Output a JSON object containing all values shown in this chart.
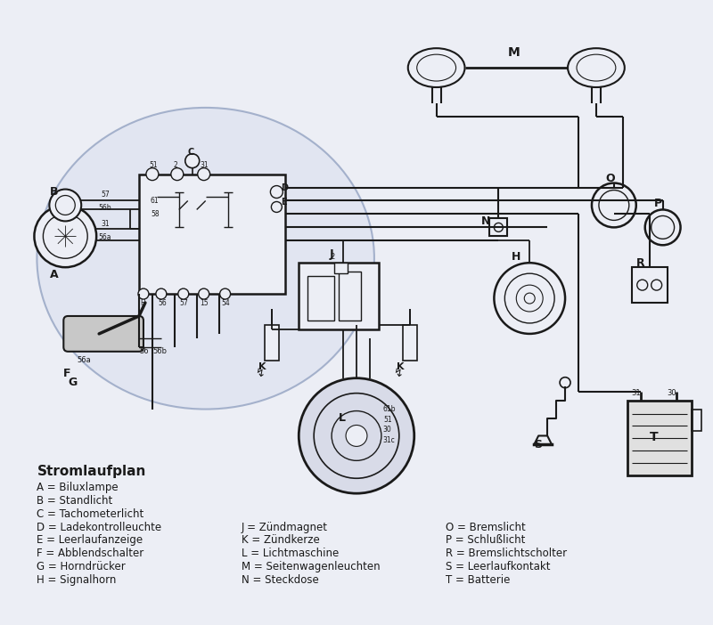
{
  "bg_color": "#eceef5",
  "line_color": "#1a1a1a",
  "legend_title": "Stromlaufplan",
  "legend_col1": [
    "A = Biluxlampe",
    "B = Standlicht",
    "C = Tachometerlicht",
    "D = Ladekontrolleuchte",
    "E = Leerlaufanzeige",
    "F = Abblendschalter",
    "G = Horndrücker",
    "H = Signalhorn"
  ],
  "legend_col2": [
    "J = Zündmagnet",
    "K = Zündkerze",
    "L = Lichtmaschine",
    "M = Seitenwagenleuchten",
    "N = Steckdose"
  ],
  "legend_col3": [
    "O = Bremslicht",
    "P = Schlußlicht",
    "R = Bremslichtscholter",
    "S = Leerlaufkontakt",
    "T = Batterie"
  ]
}
